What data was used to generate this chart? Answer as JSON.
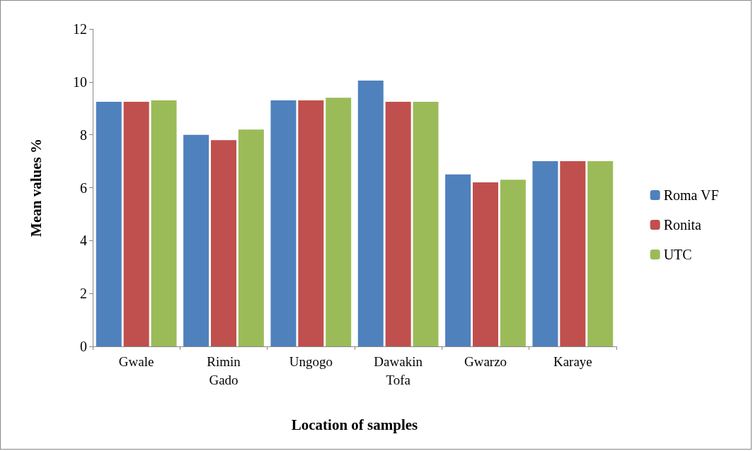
{
  "chart_data": {
    "type": "bar",
    "xlabel": "Location of samples",
    "ylabel": "Mean values %",
    "categories": [
      "Gwale",
      "Rimin Gado",
      "Ungogo",
      "Dawakin Tofa",
      "Gwarzo",
      "Karaye"
    ],
    "series": [
      {
        "name": "Roma VF",
        "color": "#4f81bd",
        "values": [
          9.25,
          8.0,
          9.3,
          10.05,
          6.5,
          7.0
        ]
      },
      {
        "name": "Ronita",
        "color": "#c0504d",
        "values": [
          9.25,
          7.8,
          9.3,
          9.25,
          6.2,
          7.0
        ]
      },
      {
        "name": "UTC",
        "color": "#9bbb59",
        "values": [
          9.3,
          8.2,
          9.4,
          9.25,
          6.3,
          7.0
        ]
      }
    ],
    "ylim": [
      0,
      12
    ],
    "yticks": [
      0,
      2,
      4,
      6,
      8,
      10,
      12
    ],
    "grid": false,
    "legend": "right"
  }
}
